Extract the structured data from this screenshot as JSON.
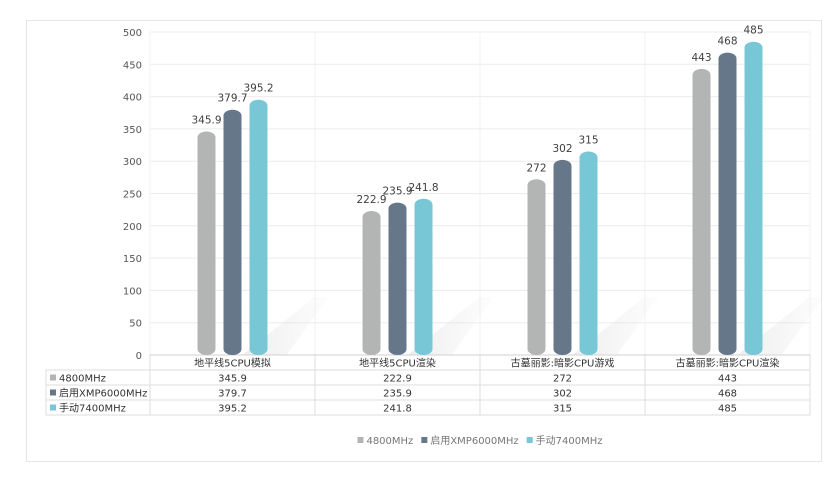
{
  "chart_data": {
    "type": "bar",
    "title": "",
    "xlabel": "",
    "ylabel": "",
    "ylim": [
      0,
      500
    ],
    "yticks": [
      "0",
      "50",
      "100",
      "150",
      "200",
      "250",
      "300",
      "350",
      "400",
      "450",
      "500"
    ],
    "categories": [
      "地平线5CPU模拟",
      "地平线5CPU渲染",
      "古墓丽影:暗影CPU游戏",
      "古墓丽影:暗影CPU渲染"
    ],
    "series": [
      {
        "name": "4800MHz",
        "color": "#b3b5b4",
        "values": [
          345.9,
          222.9,
          272,
          443
        ],
        "labels": [
          "345.9",
          "222.9",
          "272",
          "443"
        ]
      },
      {
        "name": "启用XMP6000MHz",
        "color": "#67778a",
        "values": [
          379.7,
          235.9,
          302,
          468
        ],
        "labels": [
          "379.7",
          "235.9",
          "302",
          "468"
        ]
      },
      {
        "name": "手动7400MHz",
        "color": "#78c7d6",
        "values": [
          395.2,
          241.8,
          315,
          485
        ],
        "labels": [
          "395.2",
          "241.8",
          "315",
          "485"
        ]
      }
    ],
    "grid": true,
    "data_table": true,
    "legend": "bottom-center"
  }
}
